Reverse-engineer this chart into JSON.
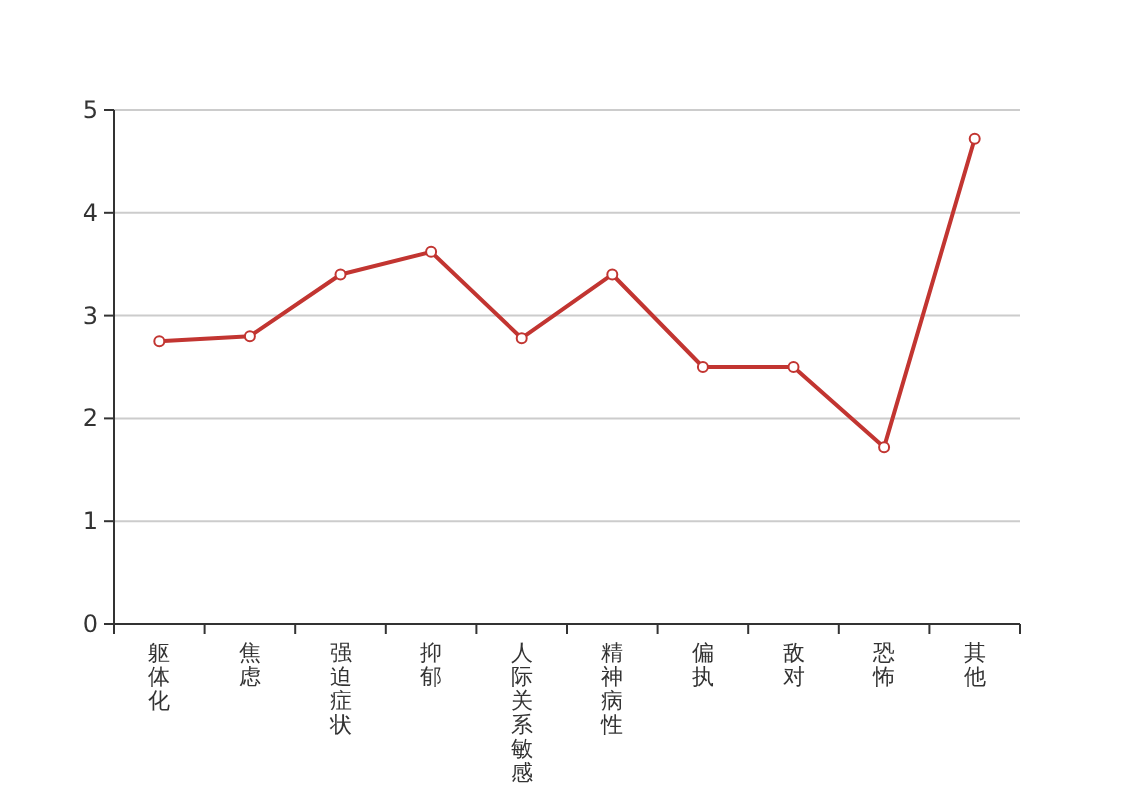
{
  "chart_data": {
    "type": "line",
    "categories": [
      "躯体化",
      "焦虑",
      "强迫症状",
      "抑郁",
      "人际关系敏感",
      "精神病性",
      "偏执",
      "敌对",
      "恐怖",
      "其他"
    ],
    "series": [
      {
        "color": "#c23531",
        "values": [
          2.75,
          2.8,
          3.4,
          3.62,
          2.78,
          3.4,
          2.5,
          2.5,
          1.72,
          4.72
        ]
      }
    ],
    "ylim": [
      0,
      5
    ],
    "yticks": [
      0,
      1,
      2,
      3,
      4,
      5
    ],
    "grid": "y",
    "marker": "circle",
    "line_style": "solid"
  }
}
